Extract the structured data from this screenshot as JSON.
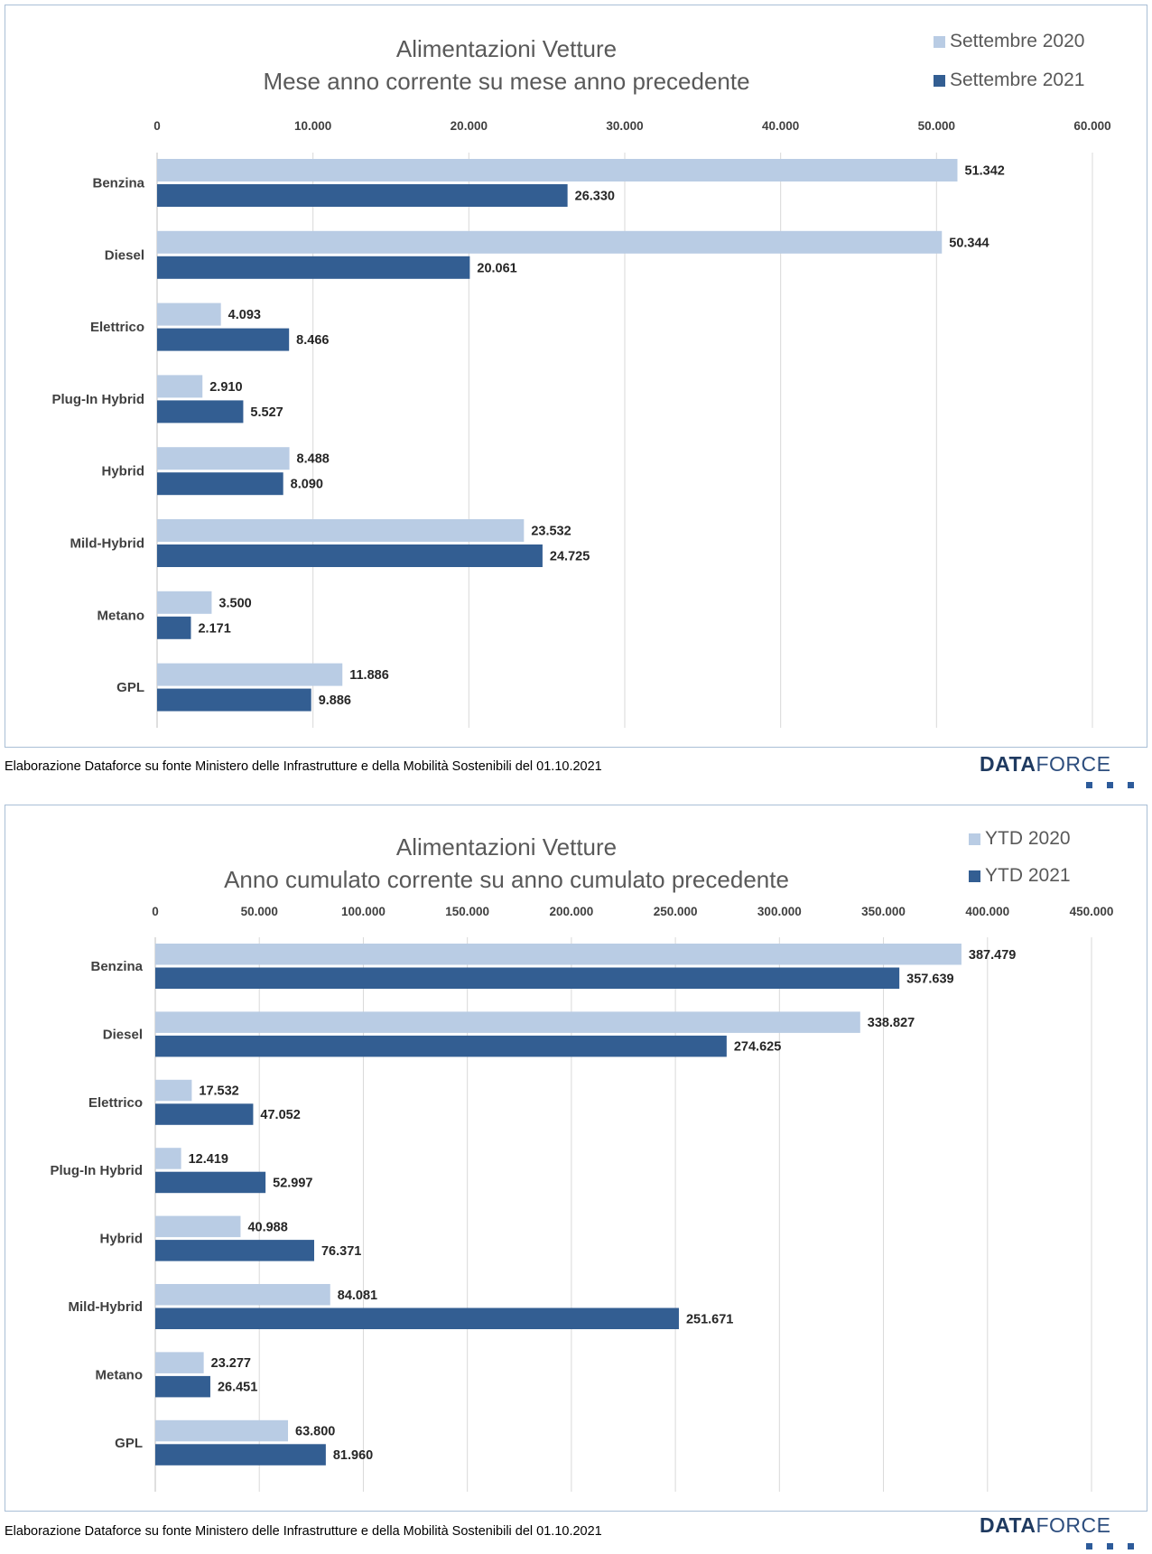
{
  "colors": {
    "series_2020": "#b9cce4",
    "series_2021": "#335e92",
    "grid": "#d9d9d9",
    "panel_border": "#a9bfd6"
  },
  "footnote": "Elaborazione Dataforce su fonte Ministero delle Infrastrutture e della Mobilità Sostenibili del 01.10.2021",
  "logo": {
    "part1": "DATA",
    "part2": "FORCE"
  },
  "chart_data": [
    {
      "type": "bar",
      "orientation": "horizontal",
      "title_line1": "Alimentazioni Vetture",
      "title_line2": "Mese anno corrente su mese anno precedente",
      "categories": [
        "Benzina",
        "Diesel",
        "Elettrico",
        "Plug-In Hybrid",
        "Hybrid",
        "Mild-Hybrid",
        "Metano",
        "GPL"
      ],
      "series": [
        {
          "name": "Settembre 2020",
          "values": [
            51342,
            50344,
            4093,
            2910,
            8488,
            23532,
            3500,
            11886
          ],
          "labels": [
            "51.342",
            "50.344",
            "4.093",
            "2.910",
            "8.488",
            "23.532",
            "3.500",
            "11.886"
          ]
        },
        {
          "name": "Settembre 2021",
          "values": [
            26330,
            20061,
            8466,
            5527,
            8090,
            24725,
            2171,
            9886
          ],
          "labels": [
            "26.330",
            "20.061",
            "8.466",
            "5.527",
            "8.090",
            "24.725",
            "2.171",
            "9.886"
          ]
        }
      ],
      "xlim": [
        0,
        60000
      ],
      "ticks": [
        0,
        10000,
        20000,
        30000,
        40000,
        50000,
        60000
      ],
      "tick_labels": [
        "0",
        "10.000",
        "20.000",
        "30.000",
        "40.000",
        "50.000",
        "60.000"
      ],
      "axis_position": "top",
      "grid": true,
      "legend_position": "top-right"
    },
    {
      "type": "bar",
      "orientation": "horizontal",
      "title_line1": "Alimentazioni Vetture",
      "title_line2": "Anno cumulato corrente su anno cumulato precedente",
      "categories": [
        "Benzina",
        "Diesel",
        "Elettrico",
        "Plug-In Hybrid",
        "Hybrid",
        "Mild-Hybrid",
        "Metano",
        "GPL"
      ],
      "series": [
        {
          "name": "YTD 2020",
          "values": [
            387479,
            338827,
            17532,
            12419,
            40988,
            84081,
            23277,
            63800
          ],
          "labels": [
            "387.479",
            "338.827",
            "17.532",
            "12.419",
            "40.988",
            "84.081",
            "23.277",
            "63.800"
          ]
        },
        {
          "name": "YTD 2021",
          "values": [
            357639,
            274625,
            47052,
            52997,
            76371,
            251671,
            26451,
            81960
          ],
          "labels": [
            "357.639",
            "274.625",
            "47.052",
            "52.997",
            "76.371",
            "251.671",
            "26.451",
            "81.960"
          ]
        }
      ],
      "xlim": [
        0,
        450000
      ],
      "ticks": [
        0,
        50000,
        100000,
        150000,
        200000,
        250000,
        300000,
        350000,
        400000,
        450000
      ],
      "tick_labels": [
        "0",
        "50.000",
        "100.000",
        "150.000",
        "200.000",
        "250.000",
        "300.000",
        "350.000",
        "400.000",
        "450.000"
      ],
      "axis_position": "top",
      "grid": true,
      "legend_position": "top-right"
    }
  ]
}
